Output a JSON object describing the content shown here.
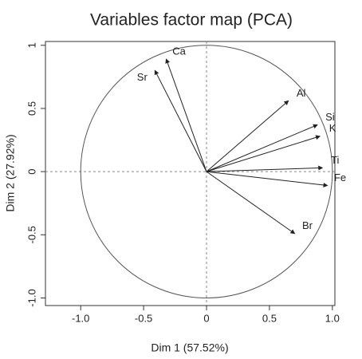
{
  "chart_data": {
    "type": "pca-variables",
    "title": "Variables factor map (PCA)",
    "x_label": "Dim 1 (57.52%)",
    "y_label": "Dim 2 (27.92%)",
    "categories": [
      "Ca",
      "Sr",
      "Al",
      "Si",
      "K",
      "Ti",
      "Fe",
      "Br"
    ],
    "x": [
      -0.32,
      -0.41,
      0.65,
      0.88,
      0.9,
      0.92,
      0.96,
      0.7
    ],
    "values": [
      0.89,
      0.8,
      0.56,
      0.37,
      0.28,
      0.03,
      -0.11,
      -0.49
    ],
    "color": "#222222",
    "xlim": [
      -1.28,
      1.02
    ],
    "ylim": [
      -1.06,
      1.03
    ],
    "xticks": [
      {
        "value": -1,
        "label": "-1.0"
      },
      -0.5,
      0,
      0.5,
      {
        "value": 1,
        "label": "1.0"
      }
    ],
    "yticks": [
      {
        "value": -1,
        "label": "-1.0"
      },
      -0.5,
      0,
      0.5,
      1
    ]
  }
}
